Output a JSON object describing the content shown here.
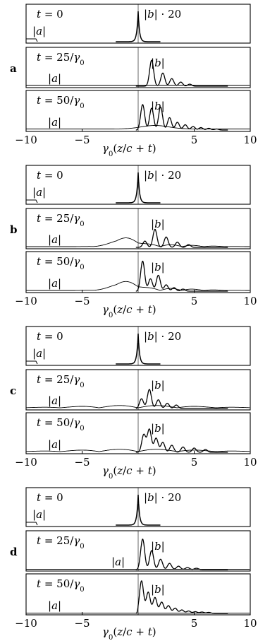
{
  "chart_data": {
    "type": "line",
    "xlabel": "γ0(z/c + t)",
    "xlim": [
      -10,
      10
    ],
    "xticks": [
      -10,
      -5,
      5,
      10
    ],
    "xtick_labels": [
      "−10",
      "−5",
      "5",
      "10"
    ],
    "panels": [
      {
        "letter": "a",
        "rows": [
          {
            "t_label": "t = 0",
            "a_label": "|a|",
            "b_label": "|b| · 20",
            "profile": "init"
          },
          {
            "t_label": "t = 25/γ0",
            "a_label": "|a|",
            "b_label": "|b|",
            "peaks": [
              [
                1.2,
                0.75
              ],
              [
                2.2,
                0.38
              ],
              [
                3.0,
                0.22
              ],
              [
                3.8,
                0.12
              ],
              [
                4.6,
                0.06
              ]
            ],
            "a_env": "flat"
          },
          {
            "t_label": "t = 50/γ0",
            "a_label": "|a|",
            "b_label": "|b|",
            "peaks": [
              [
                0.4,
                0.72
              ],
              [
                1.2,
                0.62
              ],
              [
                2.0,
                0.65
              ],
              [
                2.8,
                0.35
              ],
              [
                3.5,
                0.22
              ],
              [
                4.2,
                0.15
              ],
              [
                4.9,
                0.1
              ],
              [
                5.6,
                0.07
              ],
              [
                6.3,
                0.05
              ],
              [
                7.0,
                0.03
              ]
            ],
            "a_env": "hump"
          }
        ]
      },
      {
        "letter": "b",
        "rows": [
          {
            "t_label": "t = 0",
            "a_label": "|a|",
            "b_label": "|b| · 20",
            "profile": "init"
          },
          {
            "t_label": "t = 25/γ0",
            "a_label": "|a|",
            "b_label": "|b|",
            "peaks": [
              [
                -1.2,
                0.2
              ],
              [
                0.6,
                0.18
              ],
              [
                1.5,
                0.52
              ],
              [
                2.5,
                0.3
              ],
              [
                3.5,
                0.15
              ],
              [
                4.5,
                0.08
              ]
            ],
            "a_env": "wave"
          },
          {
            "t_label": "t = 50/γ0",
            "a_label": "|a|",
            "b_label": "|b|",
            "peaks": [
              [
                -1.0,
                0.32
              ],
              [
                0.4,
                0.85
              ],
              [
                1.1,
                0.35
              ],
              [
                1.8,
                0.45
              ],
              [
                2.5,
                0.18
              ],
              [
                3.2,
                0.1
              ],
              [
                4.0,
                0.06
              ]
            ],
            "a_env": "wave"
          }
        ]
      },
      {
        "letter": "c",
        "rows": [
          {
            "t_label": "t = 0",
            "a_label": "|a|",
            "b_label": "|b| · 20",
            "profile": "init"
          },
          {
            "t_label": "t = 25/γ0",
            "a_label": "|a|",
            "b_label": "|b|",
            "peaks": [
              [
                0.3,
                0.28
              ],
              [
                1.0,
                0.55
              ],
              [
                1.8,
                0.25
              ],
              [
                2.6,
                0.15
              ],
              [
                3.4,
                0.1
              ]
            ],
            "a_env": "long"
          },
          {
            "t_label": "t = 50/γ0",
            "a_label": "|a|",
            "b_label": "|b|",
            "peaks": [
              [
                0.5,
                0.5
              ],
              [
                1.0,
                0.65
              ],
              [
                1.6,
                0.4
              ],
              [
                2.2,
                0.28
              ],
              [
                3.0,
                0.2
              ],
              [
                4.0,
                0.15
              ],
              [
                5.0,
                0.12
              ],
              [
                6.0,
                0.08
              ]
            ],
            "a_env": "long"
          }
        ]
      },
      {
        "letter": "d",
        "rows": [
          {
            "t_label": "t = 0",
            "a_label": "|a|",
            "b_label": "|b| · 20",
            "profile": "init"
          },
          {
            "t_label": "t = 25/γ0",
            "a_label": "|a|",
            "b_label": "|b|",
            "peaks": [
              [
                0.4,
                0.88
              ],
              [
                1.2,
                0.55
              ],
              [
                2.0,
                0.3
              ],
              [
                2.8,
                0.18
              ],
              [
                3.6,
                0.1
              ],
              [
                4.4,
                0.06
              ],
              [
                5.2,
                0.04
              ]
            ],
            "a_env": "none"
          },
          {
            "t_label": "t = 50/γ0",
            "a_label": "|a|",
            "b_label": "|b|",
            "peaks": [
              [
                0.3,
                0.92
              ],
              [
                0.9,
                0.6
              ],
              [
                1.5,
                0.45
              ],
              [
                2.1,
                0.32
              ],
              [
                2.7,
                0.22
              ],
              [
                3.3,
                0.15
              ],
              [
                3.9,
                0.1
              ],
              [
                4.5,
                0.07
              ],
              [
                5.1,
                0.05
              ],
              [
                5.7,
                0.04
              ],
              [
                6.3,
                0.03
              ]
            ],
            "a_env": "none"
          }
        ]
      }
    ]
  }
}
